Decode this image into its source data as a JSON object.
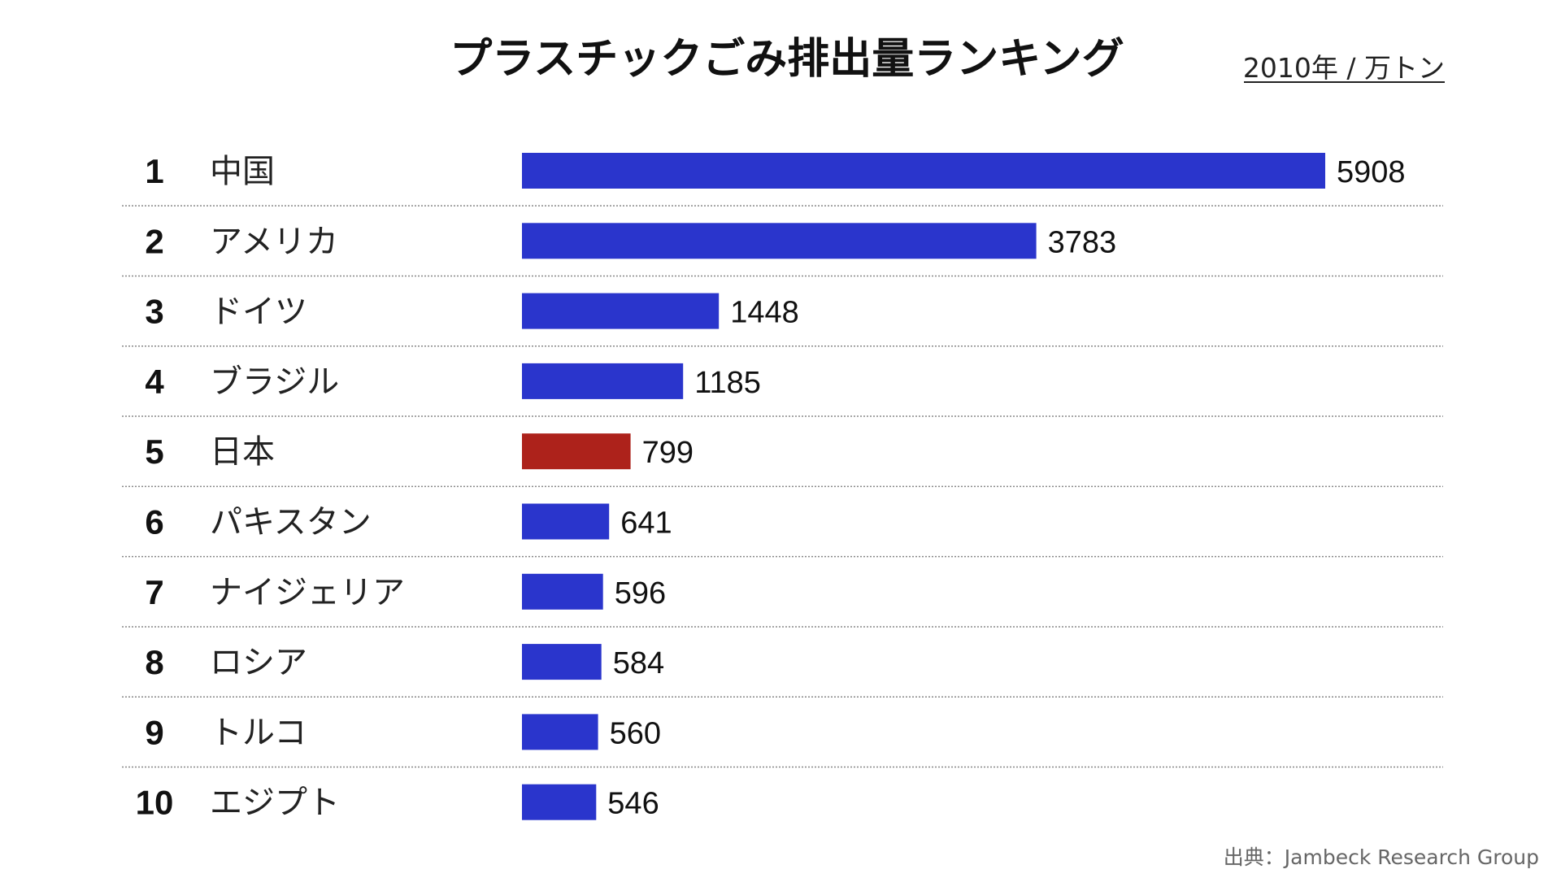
{
  "chart_data": {
    "type": "bar",
    "orientation": "horizontal",
    "title": "プラスチックごみ排出量ランキング",
    "unit_label": "2010年 / 万トン",
    "source": "出典：Jambeck Research Group",
    "ranks": [
      "1",
      "2",
      "3",
      "4",
      "5",
      "6",
      "7",
      "8",
      "9",
      "10"
    ],
    "categories": [
      "中国",
      "アメリカ",
      "ドイツ",
      "ブラジル",
      "日本",
      "パキスタン",
      "ナイジェリア",
      "ロシア",
      "トルコ",
      "エジプト"
    ],
    "values": [
      5908,
      3783,
      1448,
      1185,
      799,
      641,
      596,
      584,
      560,
      546
    ],
    "highlight_category": "日本",
    "grid": false,
    "legend": "none"
  },
  "colors": {
    "bar": "#2a35cc",
    "highlight": "#ad221b",
    "text": "#111111",
    "divider": "#888888",
    "source": "#666666"
  }
}
